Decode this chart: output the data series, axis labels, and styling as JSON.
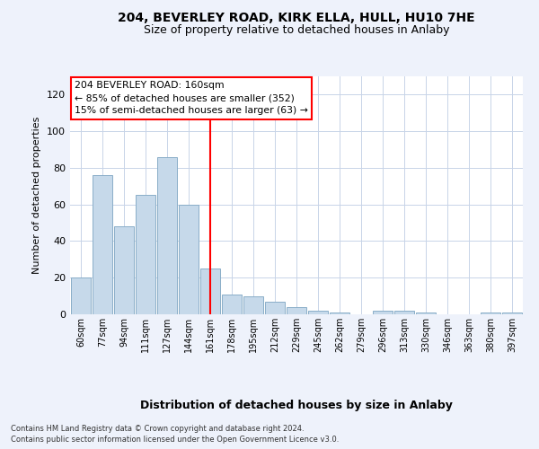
{
  "title": "204, BEVERLEY ROAD, KIRK ELLA, HULL, HU10 7HE",
  "subtitle": "Size of property relative to detached houses in Anlaby",
  "xlabel": "Distribution of detached houses by size in Anlaby",
  "ylabel": "Number of detached properties",
  "categories": [
    "60sqm",
    "77sqm",
    "94sqm",
    "111sqm",
    "127sqm",
    "144sqm",
    "161sqm",
    "178sqm",
    "195sqm",
    "212sqm",
    "229sqm",
    "245sqm",
    "262sqm",
    "279sqm",
    "296sqm",
    "313sqm",
    "330sqm",
    "346sqm",
    "363sqm",
    "380sqm",
    "397sqm"
  ],
  "values": [
    20,
    76,
    48,
    65,
    86,
    60,
    25,
    11,
    10,
    7,
    4,
    2,
    1,
    0,
    2,
    2,
    1,
    0,
    0,
    1,
    1
  ],
  "bar_color": "#c6d9ea",
  "bar_edgecolor": "#8aaec8",
  "redline_index": 6,
  "ylim": [
    0,
    130
  ],
  "yticks": [
    0,
    20,
    40,
    60,
    80,
    100,
    120
  ],
  "annotation_title": "204 BEVERLEY ROAD: 160sqm",
  "annotation_line1": "← 85% of detached houses are smaller (352)",
  "annotation_line2": "15% of semi-detached houses are larger (63) →",
  "footer1": "Contains HM Land Registry data © Crown copyright and database right 2024.",
  "footer2": "Contains public sector information licensed under the Open Government Licence v3.0.",
  "background_color": "#eef2fb",
  "plot_background": "#ffffff",
  "grid_color": "#c8d4e8",
  "title_fontsize": 10,
  "subtitle_fontsize": 9
}
